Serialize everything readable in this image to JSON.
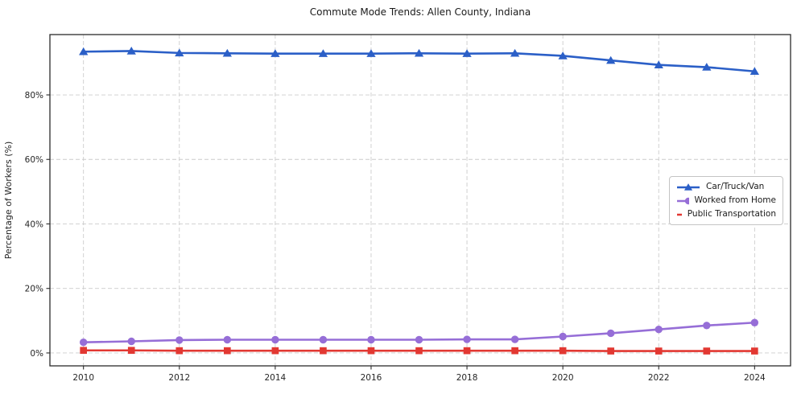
{
  "chart_data": {
    "type": "line",
    "title": "Commute Mode Trends: Allen County, Indiana",
    "xlabel": "",
    "ylabel": "Percentage of Workers (%)",
    "x": [
      2010,
      2011,
      2012,
      2013,
      2014,
      2015,
      2016,
      2017,
      2018,
      2019,
      2020,
      2021,
      2022,
      2023,
      2024
    ],
    "series": [
      {
        "name": "Car/Truck/Van",
        "color": "#2b5fc7",
        "marker": "triangle",
        "values": [
          93.4,
          93.6,
          93.0,
          92.9,
          92.8,
          92.8,
          92.8,
          92.9,
          92.8,
          92.9,
          92.1,
          90.7,
          89.3,
          88.6,
          87.3
        ]
      },
      {
        "name": "Worked from Home",
        "color": "#966ed7",
        "marker": "circle",
        "values": [
          3.3,
          3.6,
          4.0,
          4.1,
          4.1,
          4.1,
          4.1,
          4.1,
          4.2,
          4.2,
          5.1,
          6.1,
          7.3,
          8.5,
          9.4
        ]
      },
      {
        "name": "Public Transportation",
        "color": "#e23832",
        "marker": "square",
        "values": [
          0.8,
          0.8,
          0.7,
          0.7,
          0.7,
          0.7,
          0.7,
          0.7,
          0.7,
          0.7,
          0.7,
          0.6,
          0.6,
          0.6,
          0.6
        ]
      }
    ],
    "xticks": [
      2010,
      2012,
      2014,
      2016,
      2018,
      2020,
      2022,
      2024
    ],
    "yticks": [
      0,
      20,
      40,
      60,
      80
    ],
    "ytick_labels": [
      "0%",
      "20%",
      "40%",
      "60%",
      "80%"
    ],
    "xlim": [
      2009.3,
      2024.75
    ],
    "ylim": [
      -4,
      98.7
    ],
    "grid": true,
    "grid_color": "#cccccc",
    "spine_color": "#2b2b2b",
    "legend_position": "center-right"
  }
}
